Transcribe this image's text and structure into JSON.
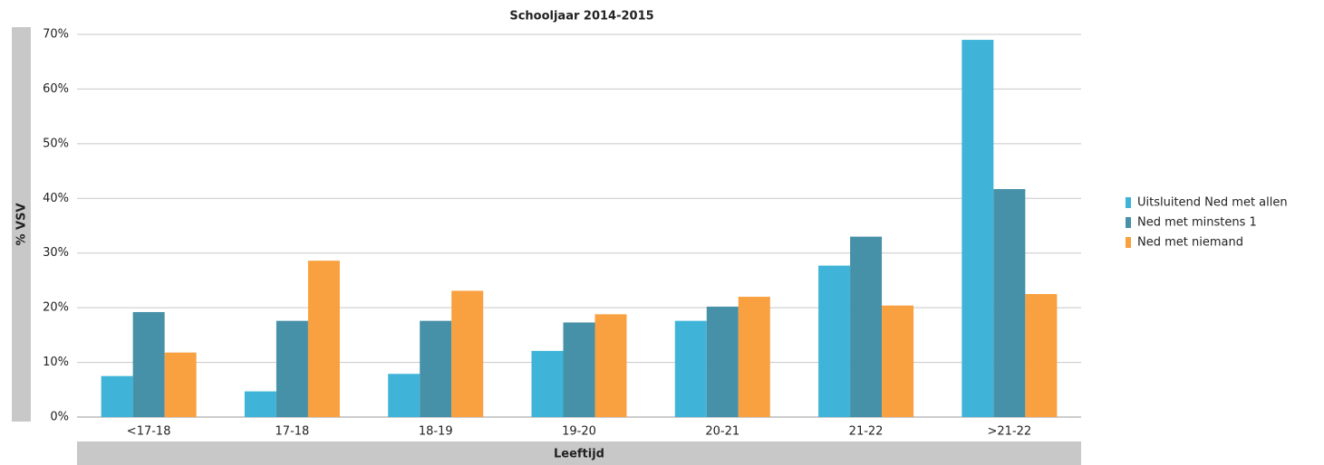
{
  "chart_data": {
    "type": "bar",
    "title": "Schooljaar 2014-2015",
    "y_label": "% VSV",
    "x_label": "Leeftijd",
    "categories": [
      "<17-18",
      "17-18",
      "18-19",
      "19-20",
      "20-21",
      "21-22",
      ">21-22"
    ],
    "series": [
      {
        "name": "Uitsluitend Ned met allen",
        "color": "#3fb4d8",
        "values": [
          7.5,
          4.7,
          7.9,
          12.1,
          17.6,
          27.7,
          69.0
        ]
      },
      {
        "name": "Ned met minstens 1",
        "color": "#4690a8",
        "values": [
          19.2,
          17.6,
          17.6,
          17.3,
          20.2,
          33.0,
          41.7
        ]
      },
      {
        "name": "Ned met niemand",
        "color": "#f9a040",
        "values": [
          11.8,
          28.6,
          23.1,
          18.8,
          22.0,
          20.4,
          22.5
        ]
      }
    ],
    "ylim": [
      0,
      70
    ],
    "yticks": [
      {
        "value": 0,
        "label": "0%"
      },
      {
        "value": 10,
        "label": "10%"
      },
      {
        "value": 20,
        "label": "20%"
      },
      {
        "value": 30,
        "label": "30%"
      },
      {
        "value": 40,
        "label": "40%"
      },
      {
        "value": 50,
        "label": "50%"
      },
      {
        "value": 60,
        "label": "60%"
      },
      {
        "value": 70,
        "label": "70%"
      }
    ],
    "grid": true,
    "legend": "right"
  }
}
